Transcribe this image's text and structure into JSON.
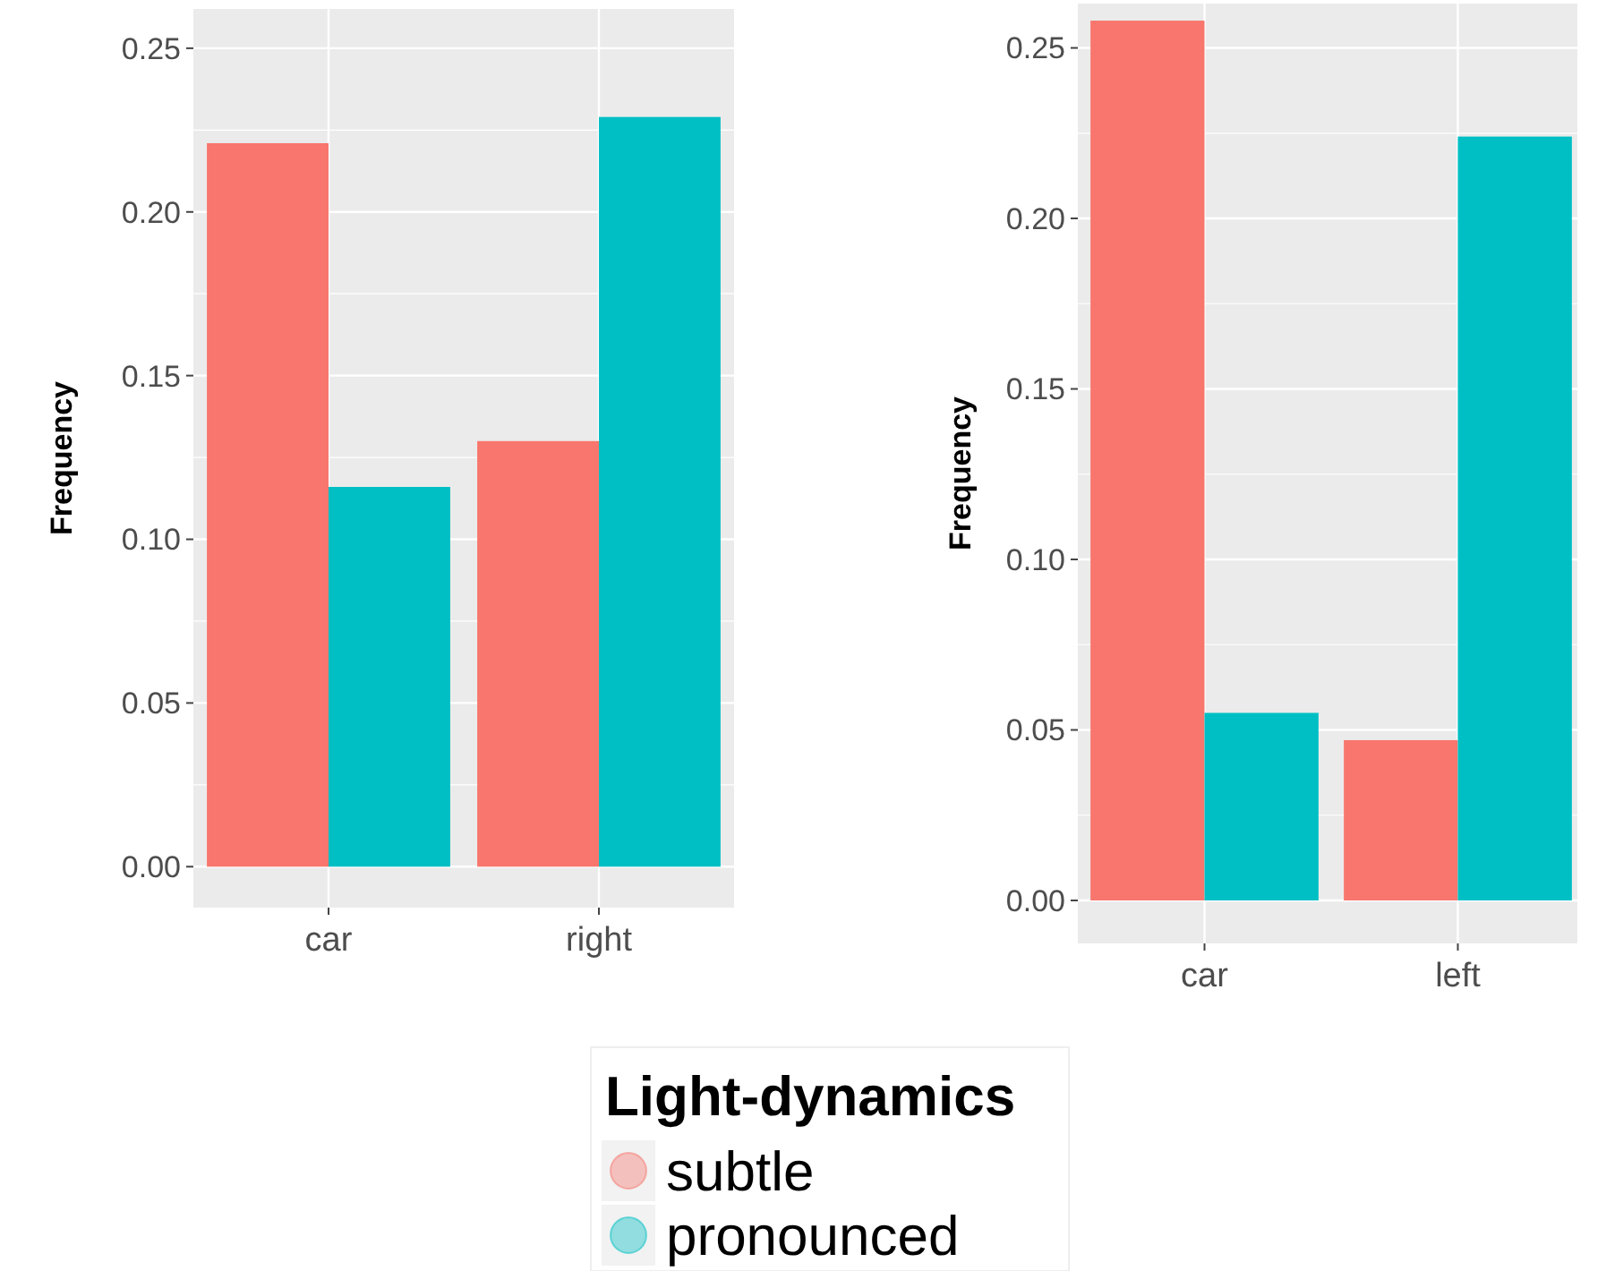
{
  "chart_data": [
    {
      "type": "bar",
      "ylabel": "Frequency",
      "categories": [
        "car",
        "right"
      ],
      "series": [
        {
          "color": "#f8766d",
          "values": [
            0.221,
            0.13
          ]
        },
        {
          "color": "#00bfc4",
          "values": [
            0.116,
            0.229
          ]
        }
      ],
      "ylim": [
        -0.0125,
        0.262
      ],
      "yticks": [
        {
          "value": 0,
          "label": "0.00"
        },
        {
          "value": 0.05,
          "label": "0.05"
        },
        {
          "value": 0.1,
          "label": "0.10"
        },
        {
          "value": 0.15,
          "label": "0.15"
        },
        {
          "value": 0.2,
          "label": "0.20"
        },
        {
          "value": 0.25,
          "label": "0.25"
        }
      ],
      "grid": true,
      "legend": false
    },
    {
      "type": "bar",
      "ylabel": "Frequency",
      "categories": [
        "car",
        "left"
      ],
      "series": [
        {
          "name": "subtle",
          "color": "#f8766d",
          "values": [
            0.258,
            0.047
          ]
        },
        {
          "name": "pronounced",
          "color": "#00bfc4",
          "values": [
            0.055,
            0.224
          ]
        }
      ],
      "ylim": [
        -0.0126,
        0.263
      ],
      "yticks": [
        {
          "value": 0,
          "label": "0.00"
        },
        {
          "value": 0.05,
          "label": "0.05"
        },
        {
          "value": 0.1,
          "label": "0.10"
        },
        {
          "value": 0.15,
          "label": "0.15"
        },
        {
          "value": 0.2,
          "label": "0.20"
        },
        {
          "value": 0.25,
          "label": "0.25"
        }
      ],
      "grid": true,
      "legend": "bottom",
      "legend_title": "Light-dynamics"
    }
  ]
}
